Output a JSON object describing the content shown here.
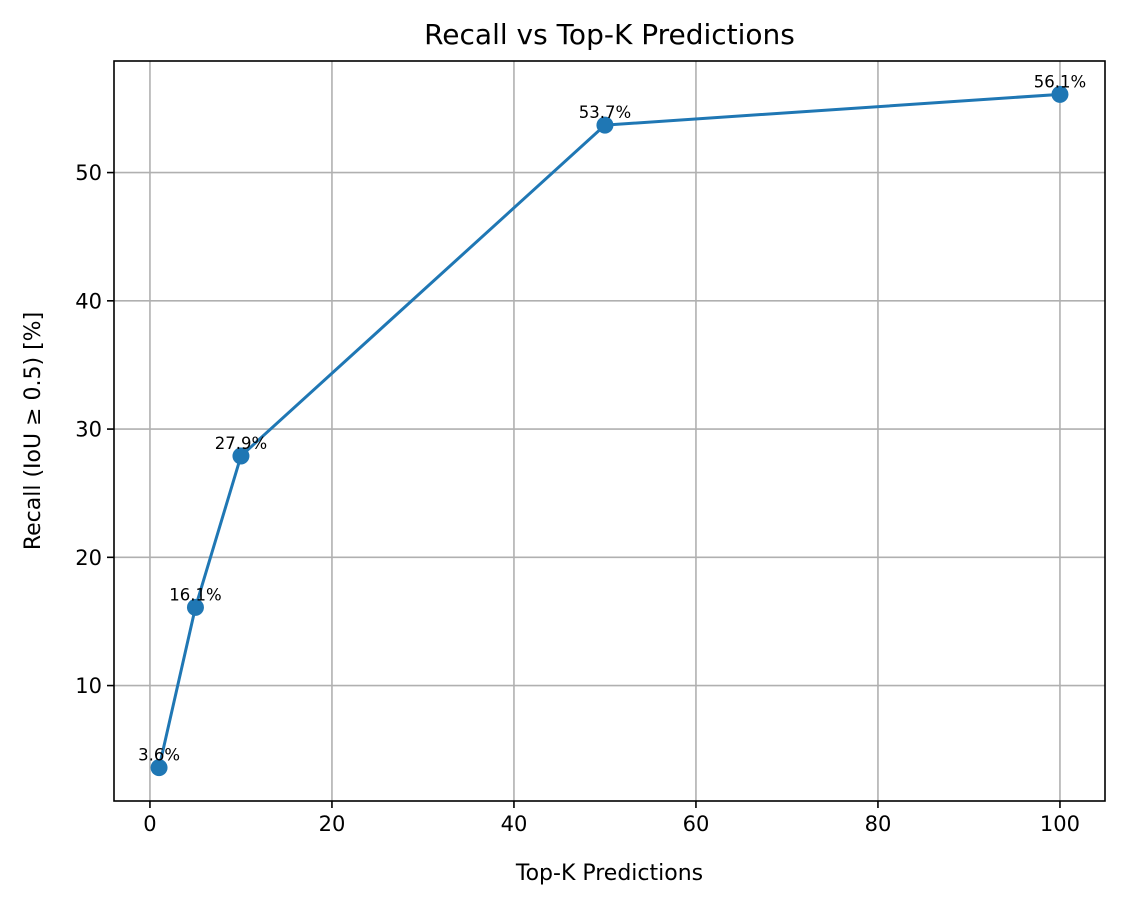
{
  "chart_data": {
    "type": "line",
    "title": "Recall vs Top-K Predictions",
    "xlabel": "Top-K Predictions",
    "ylabel": "Recall (IoU ≥ 0.5) [%]",
    "x": [
      1,
      5,
      10,
      50,
      100
    ],
    "series": [
      {
        "values": [
          3.6,
          16.1,
          27.9,
          53.7,
          56.1
        ],
        "color": "#1f77b4",
        "marker": "circle"
      }
    ],
    "data_labels": [
      "3.6%",
      "16.1%",
      "27.9%",
      "53.7%",
      "56.1%"
    ],
    "xlim": [
      -3.95,
      104.95
    ],
    "ylim": [
      1.0,
      58.7
    ],
    "xticks": [
      0,
      20,
      40,
      60,
      80,
      100
    ],
    "xtick_labels": [
      "0",
      "20",
      "40",
      "60",
      "80",
      "100"
    ],
    "yticks": [
      10,
      20,
      30,
      40,
      50
    ],
    "ytick_labels": [
      "10",
      "20",
      "30",
      "40",
      "50"
    ],
    "grid": true,
    "legend": "none"
  }
}
